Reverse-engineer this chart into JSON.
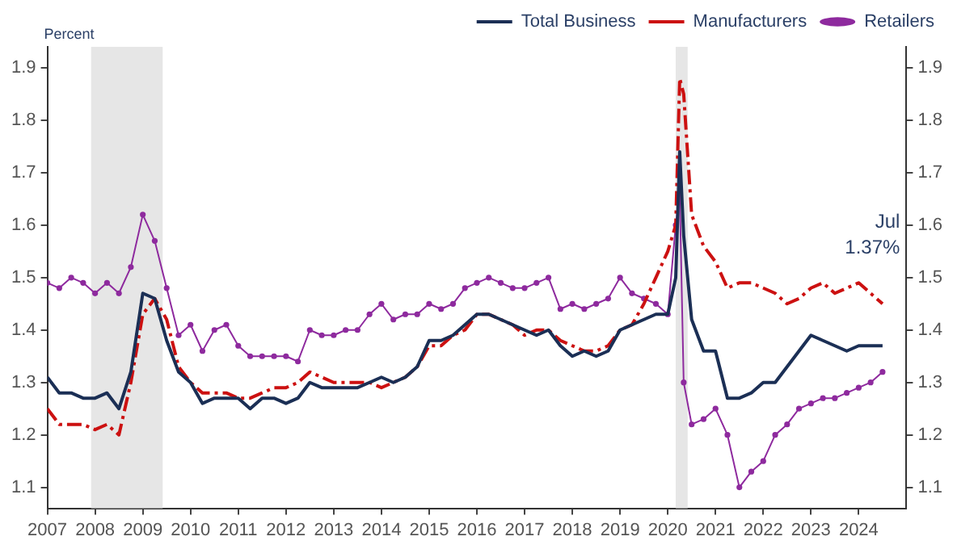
{
  "chart_data": {
    "type": "line",
    "ylabel": "Percent",
    "annotations": [
      "Jul\n1.37%"
    ],
    "x": [
      "2007-01",
      "2007-04",
      "2007-07",
      "2007-10",
      "2008-01",
      "2008-04",
      "2008-07",
      "2008-10",
      "2009-01",
      "2009-04",
      "2009-07",
      "2009-10",
      "2010-01",
      "2010-04",
      "2010-07",
      "2010-10",
      "2011-01",
      "2011-04",
      "2011-07",
      "2011-10",
      "2012-01",
      "2012-04",
      "2012-07",
      "2012-10",
      "2013-01",
      "2013-04",
      "2013-07",
      "2013-10",
      "2014-01",
      "2014-04",
      "2014-07",
      "2014-10",
      "2015-01",
      "2015-04",
      "2015-07",
      "2015-10",
      "2016-01",
      "2016-04",
      "2016-07",
      "2016-10",
      "2017-01",
      "2017-04",
      "2017-07",
      "2017-10",
      "2018-01",
      "2018-04",
      "2018-07",
      "2018-10",
      "2019-01",
      "2019-04",
      "2019-07",
      "2019-10",
      "2020-01",
      "2020-03",
      "2020-04",
      "2020-05",
      "2020-07",
      "2020-10",
      "2021-01",
      "2021-04",
      "2021-07",
      "2021-10",
      "2022-01",
      "2022-04",
      "2022-07",
      "2022-10",
      "2023-01",
      "2023-04",
      "2023-07",
      "2023-10",
      "2024-01",
      "2024-04",
      "2024-07"
    ],
    "series": [
      {
        "name": "Total Business",
        "color": "#1b2f55",
        "line_style": "solid",
        "marker": "none",
        "values": [
          1.31,
          1.28,
          1.28,
          1.27,
          1.27,
          1.28,
          1.25,
          1.32,
          1.47,
          1.46,
          1.38,
          1.32,
          1.3,
          1.26,
          1.27,
          1.27,
          1.27,
          1.25,
          1.27,
          1.27,
          1.26,
          1.27,
          1.3,
          1.29,
          1.29,
          1.29,
          1.29,
          1.3,
          1.31,
          1.3,
          1.31,
          1.33,
          1.38,
          1.38,
          1.39,
          1.41,
          1.43,
          1.43,
          1.42,
          1.41,
          1.4,
          1.39,
          1.4,
          1.37,
          1.35,
          1.36,
          1.35,
          1.36,
          1.4,
          1.41,
          1.42,
          1.43,
          1.43,
          1.5,
          1.74,
          1.58,
          1.42,
          1.36,
          1.36,
          1.27,
          1.27,
          1.28,
          1.3,
          1.3,
          1.33,
          1.36,
          1.39,
          1.38,
          1.37,
          1.36,
          1.37,
          1.37,
          1.37
        ]
      },
      {
        "name": "Manufacturers",
        "color": "#cc1111",
        "line_style": "dashed",
        "marker": "none",
        "values": [
          1.25,
          1.22,
          1.22,
          1.22,
          1.21,
          1.22,
          1.2,
          1.3,
          1.43,
          1.46,
          1.42,
          1.33,
          1.3,
          1.28,
          1.28,
          1.28,
          1.27,
          1.27,
          1.28,
          1.29,
          1.29,
          1.3,
          1.32,
          1.31,
          1.3,
          1.3,
          1.3,
          1.3,
          1.29,
          1.3,
          1.31,
          1.33,
          1.37,
          1.37,
          1.39,
          1.4,
          1.43,
          1.43,
          1.42,
          1.41,
          1.39,
          1.4,
          1.4,
          1.38,
          1.37,
          1.36,
          1.36,
          1.37,
          1.4,
          1.41,
          1.45,
          1.5,
          1.55,
          1.6,
          1.88,
          1.85,
          1.62,
          1.56,
          1.53,
          1.48,
          1.49,
          1.49,
          1.48,
          1.47,
          1.45,
          1.46,
          1.48,
          1.49,
          1.47,
          1.48,
          1.49,
          1.47,
          1.45
        ]
      },
      {
        "name": "Retailers",
        "color": "#8e2a9e",
        "line_style": "solid",
        "marker": "circle",
        "values": [
          1.49,
          1.48,
          1.5,
          1.49,
          1.47,
          1.49,
          1.47,
          1.52,
          1.62,
          1.57,
          1.48,
          1.39,
          1.41,
          1.36,
          1.4,
          1.41,
          1.37,
          1.35,
          1.35,
          1.35,
          1.35,
          1.34,
          1.4,
          1.39,
          1.39,
          1.4,
          1.4,
          1.43,
          1.45,
          1.42,
          1.43,
          1.43,
          1.45,
          1.44,
          1.45,
          1.48,
          1.49,
          1.5,
          1.49,
          1.48,
          1.48,
          1.49,
          1.5,
          1.44,
          1.45,
          1.44,
          1.45,
          1.46,
          1.5,
          1.47,
          1.46,
          1.45,
          1.43,
          1.6,
          1.66,
          1.3,
          1.22,
          1.23,
          1.25,
          1.2,
          1.1,
          1.13,
          1.15,
          1.2,
          1.22,
          1.25,
          1.26,
          1.27,
          1.27,
          1.28,
          1.29,
          1.3,
          1.32
        ]
      }
    ],
    "xlim": [
      "2007",
      "2025"
    ],
    "xticks": [
      "2007",
      "2008",
      "2009",
      "2010",
      "2011",
      "2012",
      "2013",
      "2014",
      "2015",
      "2016",
      "2017",
      "2018",
      "2019",
      "2020",
      "2021",
      "2022",
      "2023",
      "2024"
    ],
    "ylim": [
      1.06,
      1.94
    ],
    "yticks": [
      1.1,
      1.2,
      1.3,
      1.4,
      1.5,
      1.6,
      1.7,
      1.8,
      1.9
    ],
    "y2lim": [
      1.06,
      1.94
    ],
    "y2ticks": [
      1.1,
      1.2,
      1.3,
      1.4,
      1.5,
      1.6,
      1.7,
      1.8,
      1.9
    ],
    "bands": [
      {
        "axis": "x",
        "from": "2007-12",
        "to": "2009-06",
        "color": "#e6e6e6"
      },
      {
        "axis": "x",
        "from": "2020-03",
        "to": "2020-06",
        "color": "#e6e6e6"
      }
    ],
    "grid": false,
    "legend": "top right"
  }
}
